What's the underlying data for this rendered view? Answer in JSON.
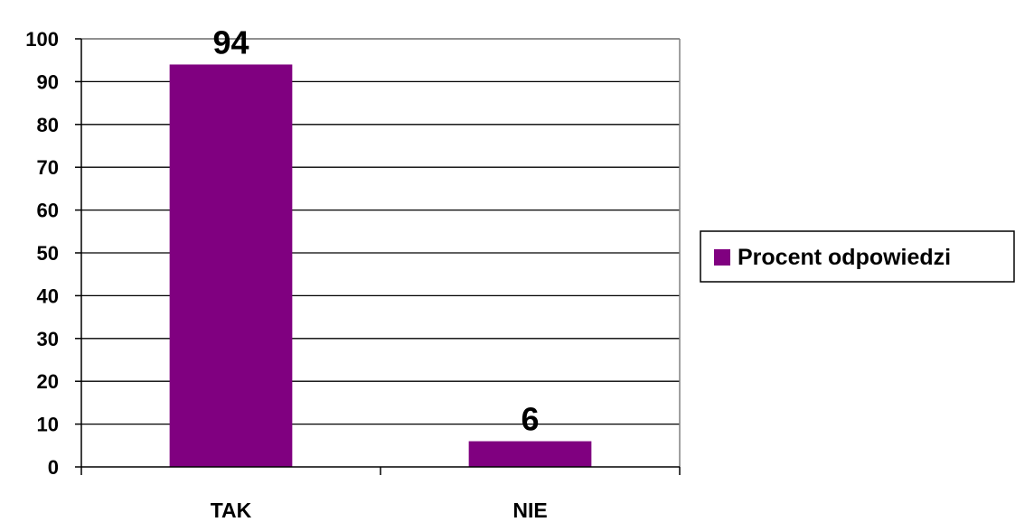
{
  "chart_data": {
    "type": "bar",
    "categories": [
      "TAK",
      "NIE"
    ],
    "series": [
      {
        "name": "Procent odpowiedzi",
        "values": [
          94,
          6
        ],
        "color": "#800080"
      }
    ],
    "data_labels": [
      "94",
      "6"
    ],
    "y_ticks": [
      "0",
      "10",
      "20",
      "30",
      "40",
      "50",
      "60",
      "70",
      "80",
      "90",
      "100"
    ],
    "ylim": [
      0,
      100
    ],
    "grid": true,
    "legend_position": "right",
    "title": "",
    "xlabel": "",
    "ylabel": ""
  }
}
